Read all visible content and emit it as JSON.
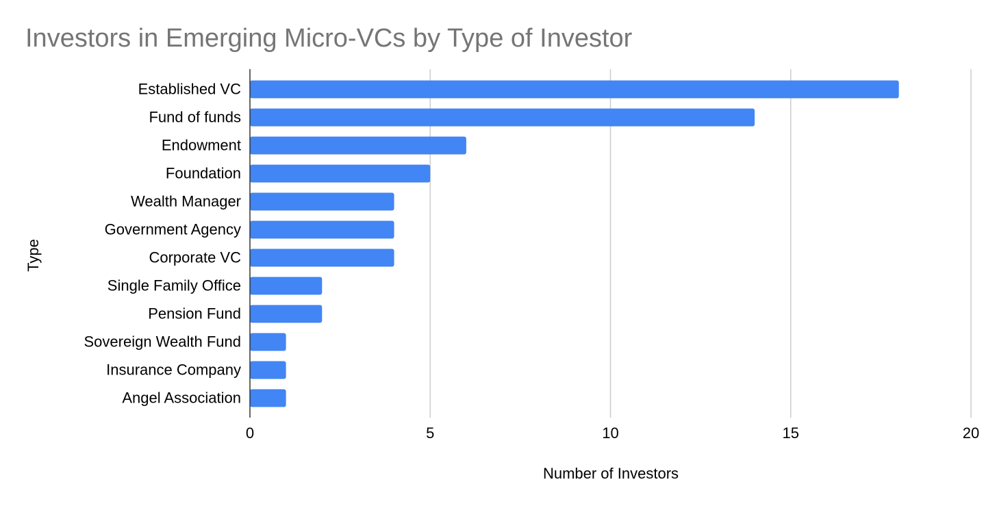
{
  "chart_data": {
    "type": "bar",
    "orientation": "horizontal",
    "title": "Investors in Emerging Micro-VCs by Type of Investor",
    "xlabel": "Number of Investors",
    "ylabel": "Type",
    "categories": [
      "Established VC",
      "Fund of funds",
      "Endowment",
      "Foundation",
      "Wealth Manager",
      "Government Agency",
      "Corporate VC",
      "Single Family Office",
      "Pension Fund",
      "Sovereign Wealth Fund",
      "Insurance Company",
      "Angel Association"
    ],
    "values": [
      18,
      14,
      6,
      5,
      4,
      4,
      4,
      2,
      2,
      1,
      1,
      1
    ],
    "xlim": [
      0,
      20
    ],
    "xticks": [
      "0",
      "5",
      "10",
      "15",
      "20"
    ],
    "grid": "vertical",
    "legend": "none",
    "colors": {
      "bar": "#4285f4",
      "grid": "#cccccc",
      "axis": "#333333",
      "title": "#757575"
    }
  }
}
